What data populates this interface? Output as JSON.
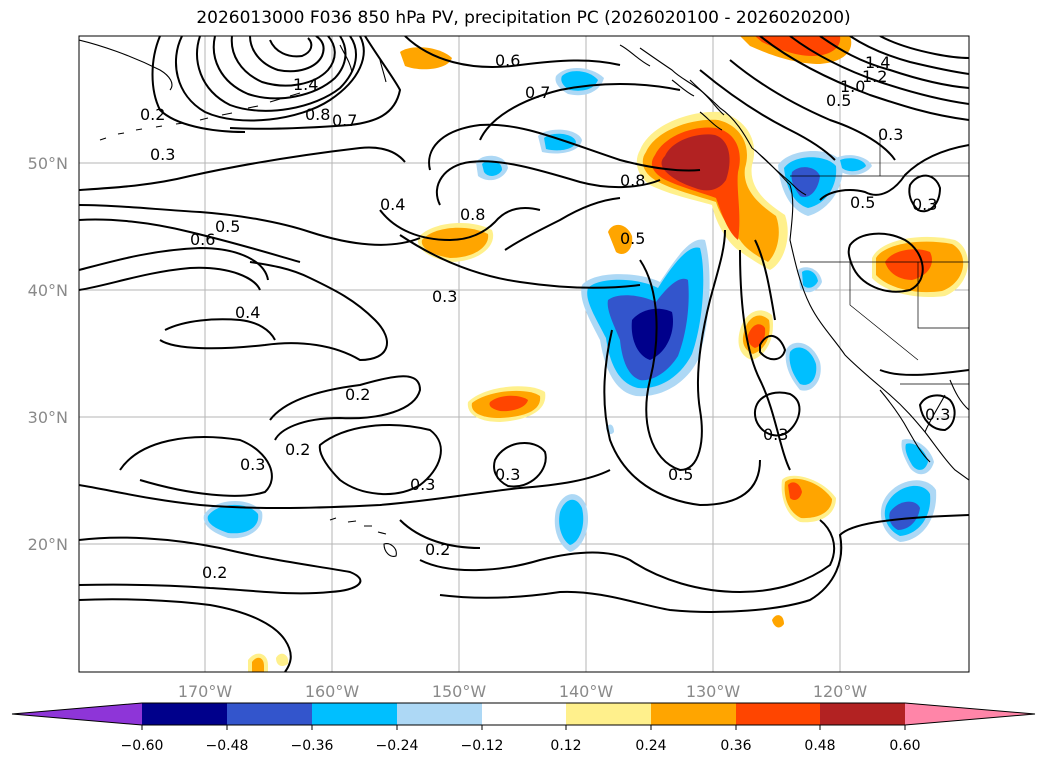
{
  "title": "2026013000 F036 850 hPa PV, precipitation PC (2026020100 - 2026020200)",
  "map": {
    "lon_ticks": [
      "170°W",
      "160°W",
      "150°W",
      "140°W",
      "130°W",
      "120°W"
    ],
    "lat_ticks": [
      "50°N",
      "40°N",
      "30°N",
      "20°N"
    ],
    "contour_labels": [
      "1.4",
      "0.8",
      "0.7",
      "0.6",
      "0.5",
      "0.4",
      "0.3",
      "0.2",
      "1.2",
      "1.0"
    ]
  },
  "colorbar": {
    "tick_labels": [
      "−0.60",
      "−0.48",
      "−0.36",
      "−0.24",
      "−0.12",
      "0.12",
      "0.24",
      "0.36",
      "0.48",
      "0.60"
    ],
    "colors": [
      "#8e35d8",
      "#00008b",
      "#3355cc",
      "#00bfff",
      "#add8f5",
      "#ffffff",
      "#fff08c",
      "#ffa500",
      "#ff4500",
      "#b22222",
      "#ff85a8"
    ]
  },
  "chart_data": {
    "type": "heatmap",
    "title": "2026013000 F036 850 hPa PV, precipitation PC (2026020100 - 2026020200)",
    "xlabel": "",
    "ylabel": "",
    "x_ticks": [
      "170°W",
      "160°W",
      "150°W",
      "140°W",
      "130°W",
      "120°W"
    ],
    "y_ticks": [
      "50°N",
      "40°N",
      "30°N",
      "20°N"
    ],
    "fill_levels": [
      -0.6,
      -0.48,
      -0.36,
      -0.24,
      -0.12,
      0.12,
      0.24,
      0.36,
      0.48,
      0.6
    ],
    "contour_levels": [
      0.2,
      0.3,
      0.4,
      0.5,
      0.6,
      0.7,
      0.8,
      1.0,
      1.2,
      1.4
    ]
  }
}
